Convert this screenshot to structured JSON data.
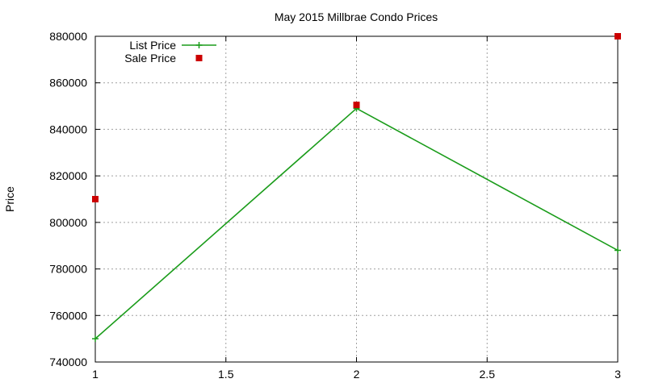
{
  "chart_data": {
    "type": "line",
    "title": "May 2015 Millbrae Condo Prices",
    "xlabel": "",
    "ylabel": "Price",
    "xlim": [
      1,
      3
    ],
    "ylim": [
      740000,
      880000
    ],
    "xticks": [
      "1",
      "1.5",
      "2",
      "2.5",
      "3"
    ],
    "yticks": [
      "740000",
      "760000",
      "780000",
      "800000",
      "820000",
      "840000",
      "860000",
      "880000"
    ],
    "grid": true,
    "legend_position": "top-left",
    "series": [
      {
        "name": "List Price",
        "style": "line+points",
        "marker": "plus",
        "color": "#1a9c1a",
        "x": [
          1,
          2,
          3
        ],
        "y": [
          750000,
          849000,
          788000
        ]
      },
      {
        "name": "Sale Price",
        "style": "points",
        "marker": "square",
        "color": "#cc0000",
        "x": [
          1,
          2,
          3
        ],
        "y": [
          810000,
          850500,
          880000
        ]
      }
    ]
  }
}
